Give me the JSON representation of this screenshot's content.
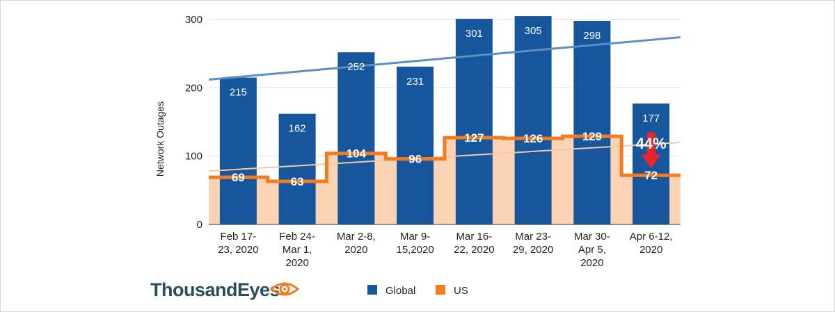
{
  "chart_data": {
    "type": "bar",
    "ylabel": "Network Outages",
    "ylim": [
      0,
      300
    ],
    "yticks": [
      0,
      100,
      200,
      300
    ],
    "categories": [
      [
        "Feb 17-",
        "23, 2020"
      ],
      [
        "Feb 24-",
        "Mar 1,",
        "2020"
      ],
      [
        "Mar 2-8,",
        "2020"
      ],
      [
        "Mar 9-",
        "15,2020"
      ],
      [
        "Mar 16-",
        "22, 2020"
      ],
      [
        "Mar 23-",
        "29, 2020"
      ],
      [
        "Mar 30-",
        "Apr 5,",
        "2020"
      ],
      [
        "Apr 6-12,",
        "2020"
      ]
    ],
    "series": [
      {
        "name": "Global",
        "type": "bar",
        "color": "#16569c",
        "values": [
          215,
          162,
          252,
          231,
          301,
          305,
          298,
          177
        ]
      },
      {
        "name": "US",
        "type": "step-area",
        "color": "#f37b20",
        "fill": "#fbd3b5",
        "values": [
          69,
          63,
          104,
          96,
          127,
          126,
          129,
          72
        ]
      }
    ],
    "trendlines": [
      {
        "series": "Global",
        "color": "#5b8fc4",
        "start": 212,
        "end": 274
      },
      {
        "series": "US",
        "color": "#f6c9a4",
        "start": 78,
        "end": 120
      }
    ],
    "annotation": {
      "text": "44%",
      "direction": "down",
      "color": "#e8262a"
    }
  },
  "legend": {
    "global": "Global",
    "us": "US"
  },
  "logo": {
    "text": "ThousandEyes"
  }
}
